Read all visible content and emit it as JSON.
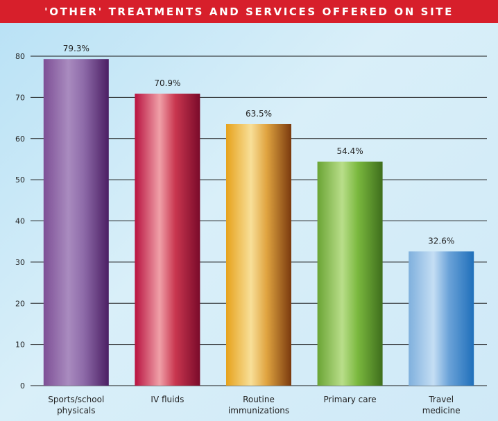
{
  "title": "'OTHER' TREATMENTS AND SERVICES OFFERED ON SITE",
  "colors": {
    "title_bar": "#d71f2b",
    "background": "#cfe9f7",
    "bars": [
      [
        "#7d4f95",
        "#a98bbf",
        "#8d6aa8",
        "#4b1e63"
      ],
      [
        "#b8123f",
        "#f0a0a8",
        "#c9364f",
        "#7a0a2a"
      ],
      [
        "#e6a21c",
        "#f8df98",
        "#e0a440",
        "#7a3a0e"
      ],
      [
        "#6aa434",
        "#b9de8a",
        "#7ab83e",
        "#3e6e1c"
      ],
      [
        "#7fb0dd",
        "#c5def4",
        "#6aa2d8",
        "#1f6fba"
      ]
    ]
  },
  "chart_data": {
    "type": "bar",
    "title": "'OTHER' TREATMENTS AND SERVICES OFFERED ON SITE",
    "categories": [
      [
        "Sports/school",
        "physicals"
      ],
      [
        "IV fluids"
      ],
      [
        "Routine",
        "immunizations"
      ],
      [
        "Primary care"
      ],
      [
        "Travel",
        "medicine"
      ]
    ],
    "values": [
      79.3,
      70.9,
      63.5,
      54.4,
      32.6
    ],
    "value_labels": [
      "79.3%",
      "70.9%",
      "63.5%",
      "54.4%",
      "32.6%"
    ],
    "yticks": [
      "0",
      "10",
      "20",
      "30",
      "40",
      "50",
      "60",
      "70",
      "80"
    ],
    "ylim": [
      0,
      80
    ],
    "grid": true,
    "legend": "none"
  }
}
